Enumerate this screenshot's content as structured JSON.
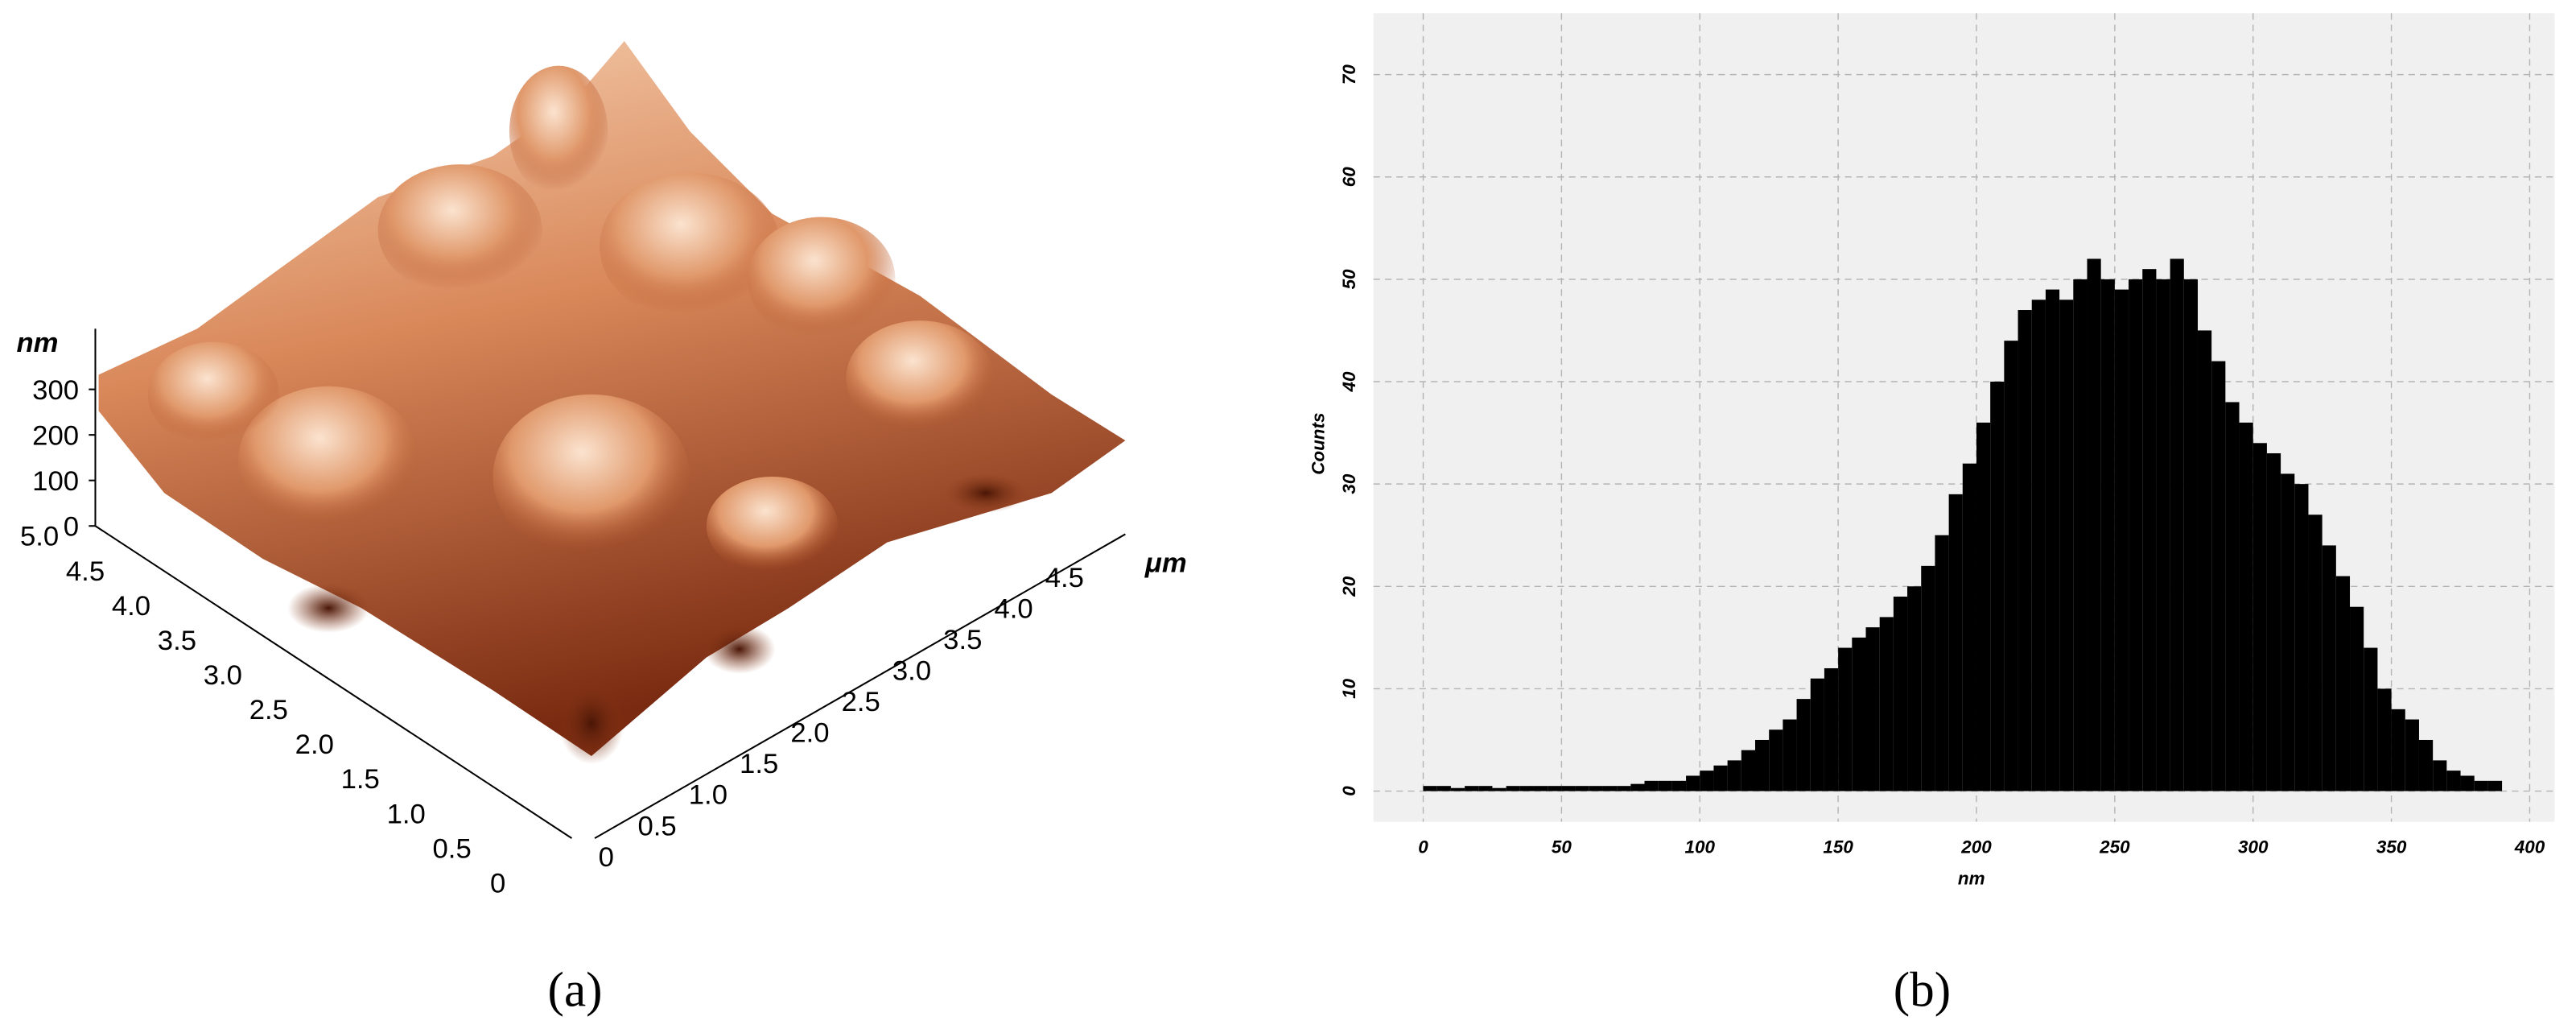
{
  "chart_data": [
    {
      "type": "surface",
      "label": "(a)",
      "z_label": "nm",
      "xy_label": "μm",
      "zticks": [
        0,
        100,
        200,
        300
      ],
      "xticks": [
        {
          "value": 0.5,
          "label": "0.5"
        },
        {
          "value": 1,
          "label": "1.0"
        },
        {
          "value": 1.5,
          "label": "1.5"
        },
        {
          "value": 2,
          "label": "2.0"
        },
        {
          "value": 2.5,
          "label": "2.5"
        },
        {
          "value": 3,
          "label": "3.0"
        },
        {
          "value": 3.5,
          "label": "3.5"
        },
        {
          "value": 4,
          "label": "4.0"
        },
        {
          "value": 4.5,
          "label": "4.5"
        },
        0
      ],
      "yticks": [
        0,
        {
          "value": 0.5,
          "label": "0.5"
        },
        {
          "value": 1,
          "label": "1.0"
        },
        {
          "value": 1.5,
          "label": "1.5"
        },
        {
          "value": 2,
          "label": "2.0"
        },
        {
          "value": 2.5,
          "label": "2.5"
        },
        {
          "value": 3,
          "label": "3.0"
        },
        {
          "value": 3.5,
          "label": "3.5"
        },
        {
          "value": 4,
          "label": "4.0"
        },
        {
          "value": 4.5,
          "label": "4.5"
        },
        {
          "value": 5,
          "label": "5.0"
        }
      ]
    },
    {
      "type": "histogram",
      "label": "(b)",
      "x_label": "nm",
      "y_label": "Counts",
      "color": "#000000",
      "grid": true,
      "bins": [
        0,
        5,
        10,
        15,
        20,
        25,
        30,
        35,
        40,
        45,
        50,
        55,
        60,
        65,
        70,
        75,
        80,
        85,
        90,
        95,
        100,
        105,
        110,
        115,
        120,
        125,
        130,
        135,
        140,
        145,
        150,
        155,
        160,
        165,
        170,
        175,
        180,
        185,
        190,
        195,
        200,
        205,
        210,
        215,
        220,
        225,
        230,
        235,
        240,
        245,
        250,
        255,
        260,
        265,
        270,
        275,
        280,
        285,
        290,
        295,
        300,
        305,
        310,
        315,
        320,
        325,
        330,
        335,
        340,
        345,
        350,
        355,
        360,
        365,
        370,
        375,
        380,
        385,
        390
      ],
      "values": [
        0.5,
        0.5,
        0.3,
        0.5,
        0.5,
        0.3,
        0.5,
        0.5,
        0.5,
        0.5,
        0.5,
        0.5,
        0.5,
        0.5,
        0.5,
        0.7,
        1,
        1,
        1,
        1.5,
        2,
        2.5,
        3,
        4,
        5,
        6,
        7,
        9,
        11,
        12,
        14,
        15,
        16,
        17,
        19,
        20,
        22,
        25,
        29,
        32,
        36,
        40,
        44,
        47,
        48,
        49,
        48,
        50,
        52,
        50,
        49,
        50,
        51,
        50,
        52,
        50,
        45,
        42,
        38,
        36,
        34,
        33,
        31,
        30,
        27,
        24,
        21,
        18,
        14,
        10,
        8,
        7,
        5,
        3,
        2,
        1.5,
        1,
        1
      ],
      "xlim": [
        -18,
        409
      ],
      "ylim": [
        -3,
        76
      ],
      "xticks": [
        0,
        50,
        100,
        150,
        200,
        250,
        300,
        350,
        400
      ],
      "yticks": [
        0,
        10,
        20,
        30,
        40,
        50,
        60,
        70
      ]
    }
  ]
}
